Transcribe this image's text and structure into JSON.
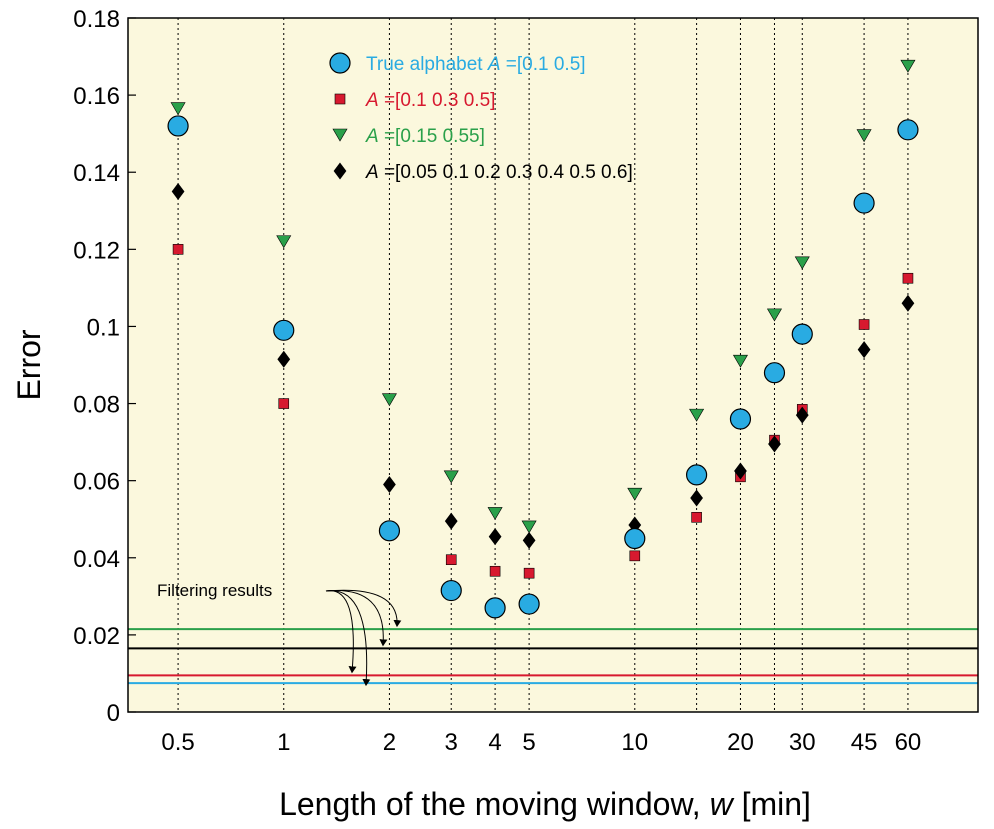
{
  "chart_data": {
    "type": "scatter",
    "x_scale": "log",
    "xlabel": "Length of the moving window, ",
    "xlabel_var": "w",
    "xlabel_unit": " [min]",
    "ylabel": "Error",
    "ylim": [
      0,
      0.18
    ],
    "yticks": [
      "0",
      "0.02",
      "0.04",
      "0.06",
      "0.08",
      "0.1",
      "0.12",
      "0.14",
      "0.16",
      "0.18"
    ],
    "x": [
      0.5,
      1,
      2,
      3,
      4,
      5,
      10,
      15,
      20,
      25,
      30,
      45,
      60
    ],
    "xtick_labels": [
      "0.5",
      "1",
      "2",
      "3",
      "4",
      "5",
      "10",
      "20",
      "30",
      "45",
      "60"
    ],
    "xtick_values": [
      0.5,
      1,
      2,
      3,
      4,
      5,
      10,
      20,
      30,
      45,
      60
    ],
    "grid": "vertical dotted lines at each x",
    "legend_position": "top-center",
    "series": [
      {
        "name": "True alphabet",
        "legend_var": "A",
        "legend_values": " =[0.1 0.5]",
        "marker": "circle",
        "color": "#29ABE2",
        "values": [
          0.152,
          0.099,
          0.047,
          0.0315,
          0.027,
          0.028,
          0.045,
          0.0615,
          0.076,
          0.088,
          0.098,
          0.132,
          0.151
        ]
      },
      {
        "name": "",
        "legend_var": "A",
        "legend_values": " =[0.1 0.3 0.5]",
        "marker": "square",
        "color": "#D7192F",
        "values": [
          0.12,
          0.08,
          0.048,
          0.0395,
          0.0365,
          0.036,
          0.0405,
          0.0505,
          0.061,
          0.0705,
          0.0785,
          0.1005,
          0.1125
        ]
      },
      {
        "name": "",
        "legend_var": "A",
        "legend_values": " =[0.15 0.55]",
        "marker": "triangle-down",
        "color": "#2AA04A",
        "values": [
          0.1565,
          0.122,
          0.081,
          0.061,
          0.0515,
          0.048,
          0.0565,
          0.077,
          0.091,
          0.103,
          0.1165,
          0.1495,
          0.1675
        ]
      },
      {
        "name": "",
        "legend_var": "A",
        "legend_values": " =[0.05 0.1 0.2 0.3 0.4 0.5 0.6]",
        "marker": "diamond",
        "color": "#000000",
        "values": [
          0.135,
          0.0915,
          0.059,
          0.0495,
          0.0455,
          0.0445,
          0.0485,
          0.0555,
          0.0625,
          0.0695,
          0.077,
          0.094,
          0.106
        ]
      }
    ],
    "reference_lines": [
      {
        "y": 0.0215,
        "color": "#2AA04A"
      },
      {
        "y": 0.0165,
        "color": "#000000"
      },
      {
        "y": 0.0095,
        "color": "#D7192F"
      },
      {
        "y": 0.0075,
        "color": "#29ABE2"
      }
    ],
    "annotation": "Filtering results",
    "colors": {
      "plot_background": "#FBF8DD",
      "gridline": "#000000"
    }
  }
}
